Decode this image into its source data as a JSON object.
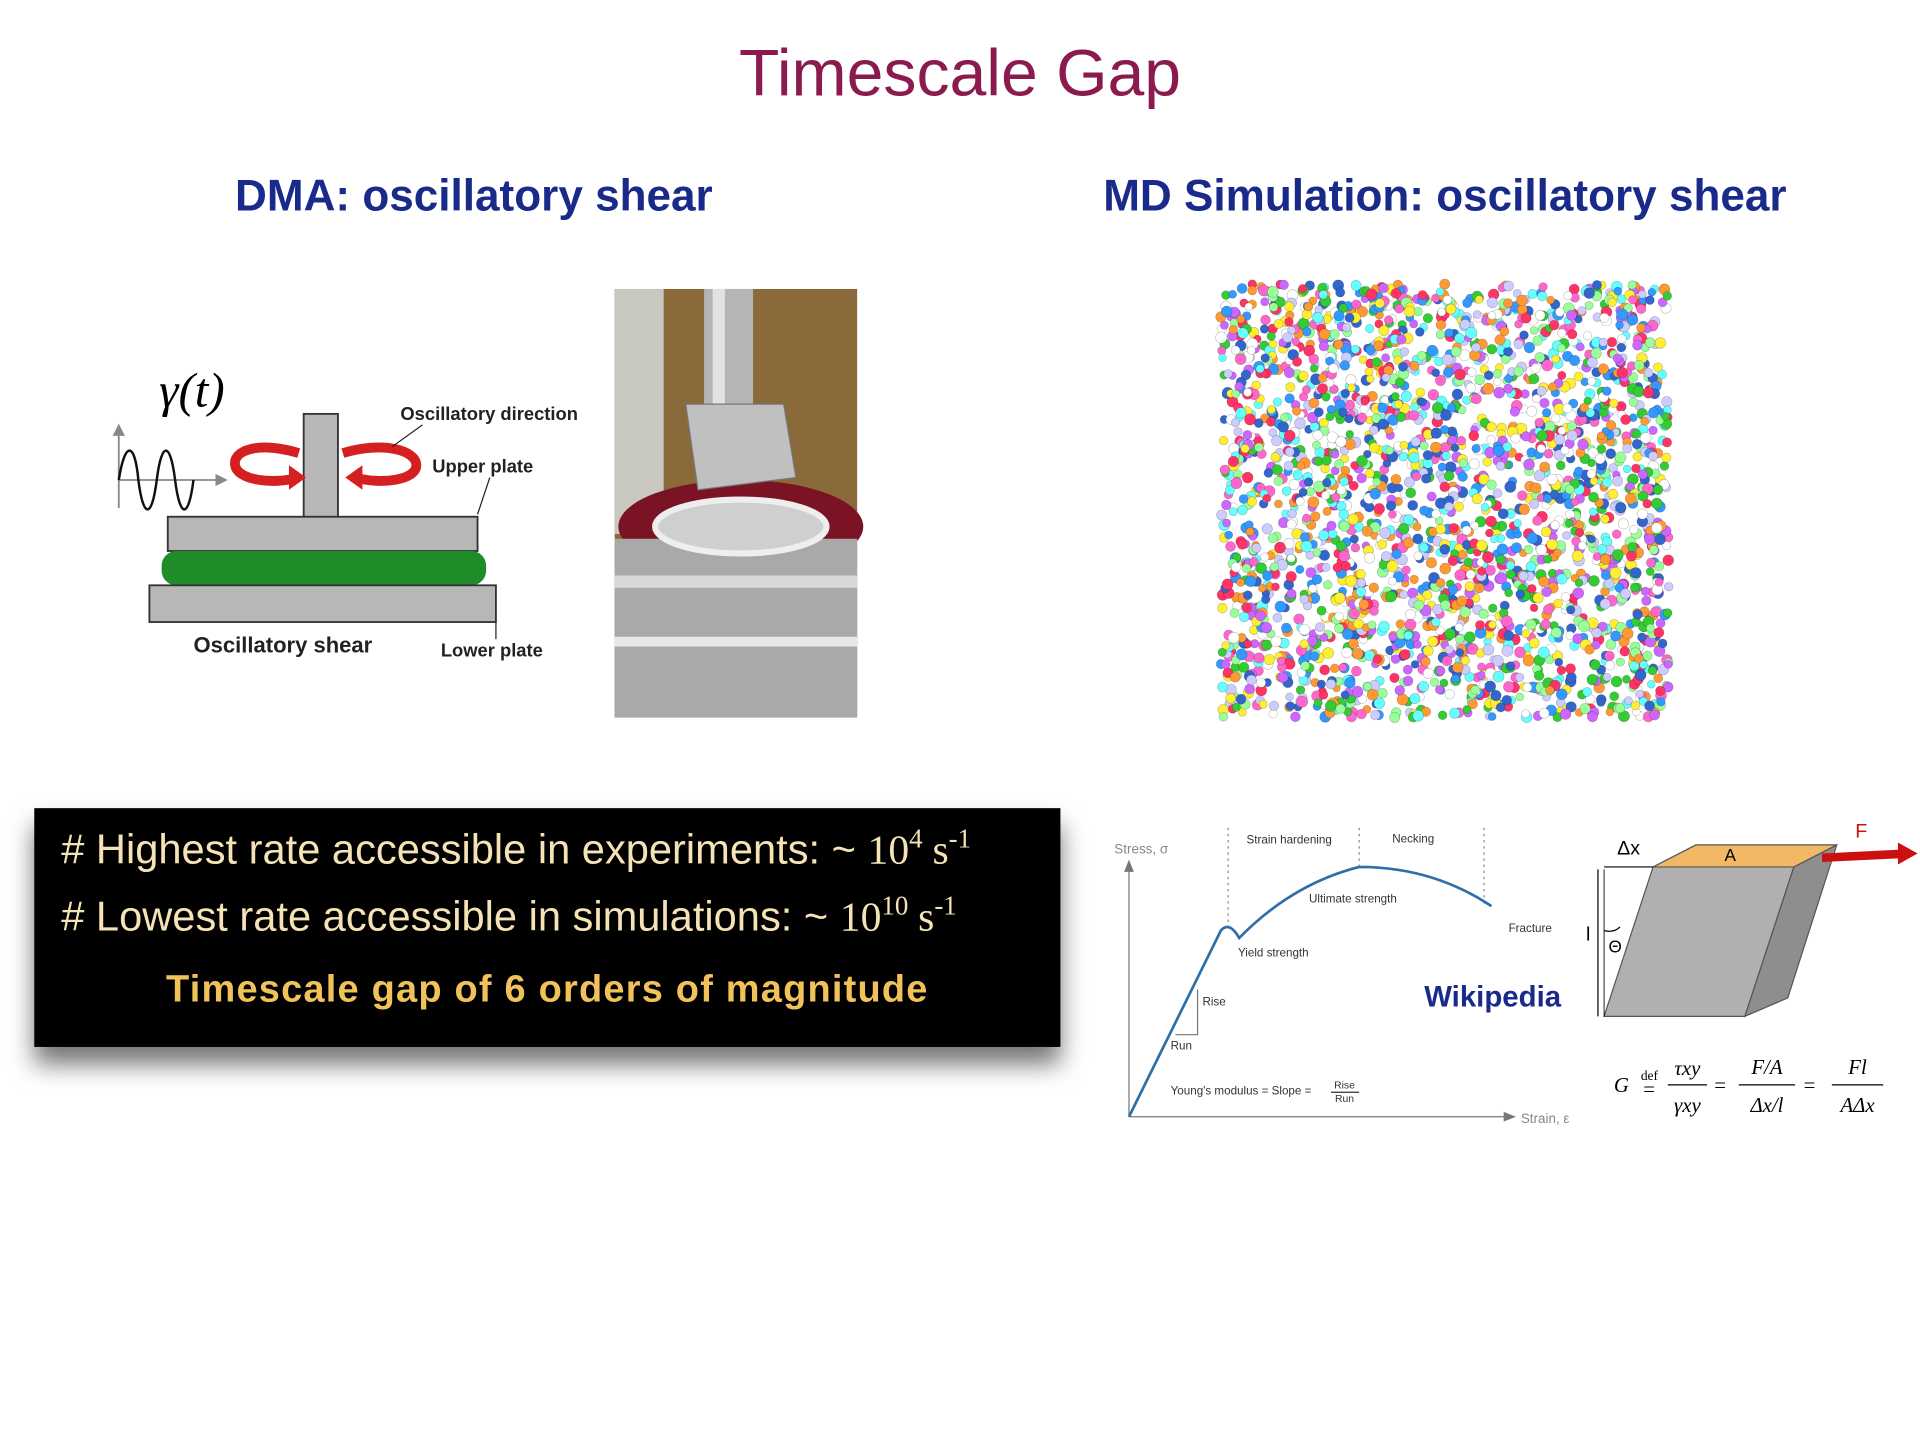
{
  "title": "Timescale Gap",
  "left": {
    "heading": "DMA: oscillatory shear",
    "diagram": {
      "strain_symbol": "γ(t)",
      "oscillatory_direction": "Oscillatory direction",
      "upper_plate": "Upper plate",
      "oscillatory_shear": "Oscillatory shear",
      "lower_plate": "Lower plate"
    }
  },
  "right": {
    "heading": "MD Simulation: oscillatory shear"
  },
  "callout": {
    "lines": [
      {
        "text": "# Highest rate accessible in experiments: ~",
        "base": "10",
        "exponent": "4",
        "unit": "s",
        "unit_exponent": "-1"
      },
      {
        "text": "# Lowest rate accessible in simulations: ~",
        "base": "10",
        "exponent": "10",
        "unit": "s",
        "unit_exponent": "-1"
      }
    ],
    "conclusion": "Timescale gap of 6 orders of magnitude"
  },
  "stress_strain": {
    "y_axis": "Stress, σ",
    "x_axis": "Strain, ε",
    "strain_hardening": "Strain hardening",
    "necking": "Necking",
    "ultimate_strength": "Ultimate strength",
    "fracture": "Fracture",
    "yield_strength": "Yield strength",
    "rise": "Rise",
    "run": "Run",
    "modulus": "Young's modulus = Slope =",
    "fraction_numerator": "Rise",
    "fraction_denominator": "Run"
  },
  "source": "Wikipedia",
  "shear_diagram": {
    "displacement": "Δx",
    "area": "A",
    "force": "F",
    "length": "l",
    "angle": "Θ",
    "formula": {
      "lhs": "G",
      "def": "def",
      "equals": "=",
      "ratio1_num": "τxy",
      "ratio1_den": "γxy",
      "ratio2_num": "F/A",
      "ratio2_den": "Δx/l",
      "ratio3_num": "Fl",
      "ratio3_den": "AΔx"
    }
  }
}
